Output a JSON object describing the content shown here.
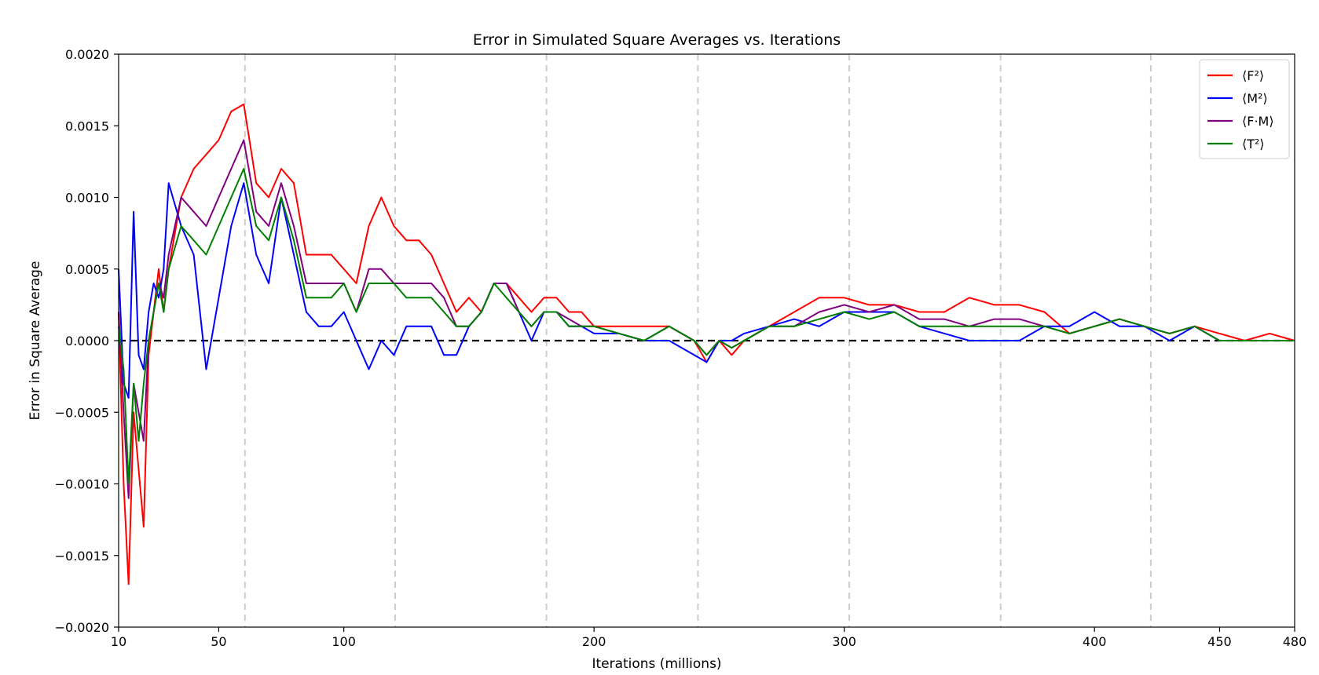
{
  "chart_data": {
    "type": "line",
    "title": "Error in Simulated Square Averages vs. Iterations",
    "xlabel": "Iterations (millions)",
    "ylabel": "Error in Square Average",
    "xlim": [
      10,
      480
    ],
    "ylim": [
      -0.002,
      0.002
    ],
    "x_ticks": [
      10,
      50,
      100,
      200,
      300,
      400,
      450,
      480
    ],
    "x_tick_labels": [
      "10",
      "50",
      "100",
      "200",
      "300",
      "400",
      "450",
      "480"
    ],
    "y_ticks": [
      -0.002,
      -0.0015,
      -0.001,
      -0.0005,
      0,
      0.0005,
      0.001,
      0.0015,
      0.002
    ],
    "y_tick_labels": [
      "−0.0020",
      "−0.0015",
      "−0.0010",
      "−0.0005",
      "0.0000",
      "0.0005",
      "0.0010",
      "0.0015",
      "0.0020"
    ],
    "vertical_reference_lines_x": [
      60.5,
      120.5,
      181,
      241.5,
      302,
      362.5,
      422.5
    ],
    "zero_line": true,
    "grid": false,
    "legend_position": "top-right",
    "x": [
      10,
      12,
      14,
      16,
      18,
      20,
      22,
      24,
      26,
      28,
      30,
      35,
      40,
      45,
      50,
      55,
      60,
      65,
      70,
      75,
      80,
      85,
      90,
      95,
      100,
      105,
      110,
      115,
      120,
      125,
      130,
      135,
      140,
      145,
      150,
      155,
      160,
      165,
      170,
      175,
      180,
      185,
      190,
      195,
      200,
      210,
      220,
      230,
      240,
      245,
      250,
      255,
      260,
      270,
      280,
      290,
      300,
      310,
      320,
      330,
      340,
      350,
      360,
      370,
      380,
      390,
      400,
      410,
      420,
      430,
      440,
      450,
      460,
      470,
      480
    ],
    "series": [
      {
        "name": "⟨F²⟩",
        "color": "#ff0000",
        "values": [
          0.0002,
          -0.001,
          -0.0017,
          -0.0005,
          -0.0009,
          -0.0013,
          -0.0001,
          0.0002,
          0.0005,
          0.0002,
          0.0005,
          0.001,
          0.0012,
          0.0013,
          0.0014,
          0.0016,
          0.00165,
          0.0011,
          0.001,
          0.0012,
          0.0011,
          0.0006,
          0.0006,
          0.0006,
          0.0005,
          0.0004,
          0.0008,
          0.001,
          0.0008,
          0.0007,
          0.0007,
          0.0006,
          0.0004,
          0.0002,
          0.0003,
          0.0002,
          0.0004,
          0.0004,
          0.0003,
          0.0002,
          0.0003,
          0.0003,
          0.0002,
          0.0002,
          0.0001,
          0.0001,
          0.0001,
          0.0001,
          0.0,
          -0.00015,
          0.0,
          -0.0001,
          0.0,
          0.0001,
          0.0002,
          0.0003,
          0.0003,
          0.00025,
          0.00025,
          0.0002,
          0.0002,
          0.0003,
          0.00025,
          0.00025,
          0.0002,
          5e-05,
          0.0001,
          0.00015,
          0.0001,
          5e-05,
          0.0001,
          5e-05,
          0.0,
          5e-05,
          0.0
        ]
      },
      {
        "name": "⟨M²⟩",
        "color": "#0000ff",
        "values": [
          0.0005,
          -0.0003,
          -0.0004,
          0.0009,
          -0.0001,
          -0.0002,
          0.0002,
          0.0004,
          0.0003,
          0.0005,
          0.0011,
          0.0008,
          0.0006,
          -0.0002,
          0.0003,
          0.0008,
          0.0011,
          0.0006,
          0.0004,
          0.001,
          0.0006,
          0.0002,
          0.0001,
          0.0001,
          0.0002,
          0.0,
          -0.0002,
          0.0,
          -0.0001,
          0.0001,
          0.0001,
          0.0001,
          -0.0001,
          -0.0001,
          0.0001,
          0.0002,
          0.0004,
          0.0004,
          0.0002,
          0.0,
          0.0002,
          0.0002,
          0.0001,
          0.0001,
          5e-05,
          5e-05,
          0.0,
          0.0,
          -0.0001,
          -0.00015,
          0.0,
          0.0,
          5e-05,
          0.0001,
          0.00015,
          0.0001,
          0.0002,
          0.0002,
          0.0002,
          0.0001,
          5e-05,
          0.0,
          0.0,
          0.0,
          0.0001,
          0.0001,
          0.0002,
          0.0001,
          0.0001,
          0.0,
          0.0001,
          0.0,
          0.0,
          0.0,
          0.0
        ]
      },
      {
        "name": "⟨F·M⟩",
        "color": "#800080",
        "values": [
          0.0002,
          -0.0005,
          -0.0011,
          -0.0003,
          -0.0005,
          -0.0007,
          0.0,
          0.0002,
          0.0004,
          0.0003,
          0.0006,
          0.001,
          0.0009,
          0.0008,
          0.001,
          0.0012,
          0.0014,
          0.0009,
          0.0008,
          0.0011,
          0.0008,
          0.0004,
          0.0004,
          0.0004,
          0.0004,
          0.0002,
          0.0005,
          0.0005,
          0.0004,
          0.0004,
          0.0004,
          0.0004,
          0.0003,
          0.0001,
          0.0001,
          0.0002,
          0.0004,
          0.0004,
          0.0002,
          0.0001,
          0.0002,
          0.0002,
          0.00015,
          0.0001,
          0.0001,
          5e-05,
          0.0,
          0.0001,
          0.0,
          -0.0001,
          0.0,
          -5e-05,
          0.0,
          0.0001,
          0.0001,
          0.0002,
          0.00025,
          0.0002,
          0.00025,
          0.00015,
          0.00015,
          0.0001,
          0.00015,
          0.00015,
          0.0001,
          5e-05,
          0.0001,
          0.00015,
          0.0001,
          5e-05,
          0.0001,
          0.0,
          0.0,
          0.0,
          0.0
        ]
      },
      {
        "name": "⟨T²⟩",
        "color": "#008000",
        "values": [
          0.0001,
          -0.0002,
          -0.001,
          -0.0003,
          -0.0007,
          -0.0003,
          0.0,
          0.0002,
          0.0004,
          0.0002,
          0.0005,
          0.0008,
          0.0007,
          0.0006,
          0.0008,
          0.001,
          0.0012,
          0.0008,
          0.0007,
          0.001,
          0.0007,
          0.0003,
          0.0003,
          0.0003,
          0.0004,
          0.0002,
          0.0004,
          0.0004,
          0.0004,
          0.0003,
          0.0003,
          0.0003,
          0.0002,
          0.0001,
          0.0001,
          0.0002,
          0.0004,
          0.0003,
          0.0002,
          0.0001,
          0.0002,
          0.0002,
          0.0001,
          0.0001,
          0.0001,
          5e-05,
          0.0,
          0.0001,
          0.0,
          -0.0001,
          0.0,
          -5e-05,
          0.0,
          0.0001,
          0.0001,
          0.00015,
          0.0002,
          0.00015,
          0.0002,
          0.0001,
          0.0001,
          0.0001,
          0.0001,
          0.0001,
          0.0001,
          5e-05,
          0.0001,
          0.00015,
          0.0001,
          5e-05,
          0.0001,
          0.0,
          0.0,
          0.0,
          0.0
        ]
      }
    ]
  }
}
